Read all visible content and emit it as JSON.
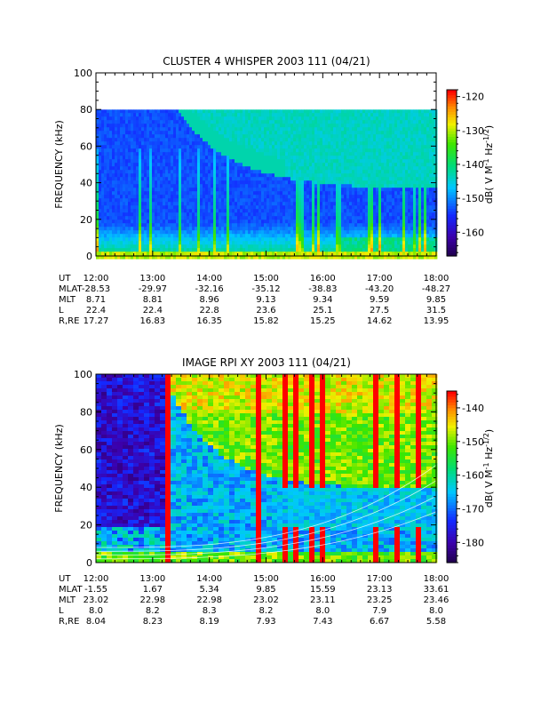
{
  "chart_data": [
    {
      "type": "heatmap",
      "title": "CLUSTER 4 WHISPER 2003 111 (04/21)",
      "ylabel": "FREQUENCY (kHz)",
      "ylim": [
        0,
        100
      ],
      "yticks": [
        0,
        20,
        40,
        60,
        80,
        100
      ],
      "data_top_khz": 80,
      "colorbar": {
        "label": "dB( V M⁻¹ Hz⁻¹ᐟ²)",
        "label_main": "dB( V M",
        "label_mid": " Hz",
        "label_end": ")",
        "sup1": "-1",
        "sup2": "-1/2",
        "ticks": [
          -120,
          -130,
          -140,
          -150,
          -160
        ],
        "range": [
          -167,
          -118
        ]
      },
      "x_ticks": [
        "12:00",
        "13:00",
        "14:00",
        "15:00",
        "16:00",
        "17:00",
        "18:00"
      ],
      "ephemeris_labels": [
        "UT",
        "MLAT",
        "MLT",
        "L",
        "R,RE"
      ],
      "ephemeris": {
        "MLAT": [
          "-28.53",
          "-29.97",
          "-32.16",
          "-35.12",
          "-38.83",
          "-43.20",
          "-48.27"
        ],
        "MLT": [
          "8.71",
          "8.81",
          "8.96",
          "9.13",
          "9.34",
          "9.59",
          "9.85"
        ],
        "L": [
          "22.4",
          "22.4",
          "22.8",
          "23.6",
          "25.1",
          "27.5",
          "31.5"
        ],
        "R,RE": [
          "17.27",
          "16.83",
          "16.35",
          "15.82",
          "15.25",
          "14.62",
          "13.95"
        ]
      }
    },
    {
      "type": "heatmap",
      "title": "IMAGE RPI XY 2003 111 (04/21)",
      "ylabel": "FREQUENCY (kHz)",
      "ylim": [
        0,
        100
      ],
      "yticks": [
        0,
        20,
        40,
        60,
        80,
        100
      ],
      "colorbar": {
        "label_main": "dB( V M",
        "label_mid": " Hz",
        "label_end": ")",
        "sup1": "-1",
        "sup2": "-1/2",
        "ticks": [
          -140,
          -150,
          -160,
          -170,
          -180
        ],
        "range": [
          -186,
          -135
        ]
      },
      "x_ticks": [
        "12:00",
        "13:00",
        "14:00",
        "15:00",
        "16:00",
        "17:00",
        "18:00"
      ],
      "ephemeris_labels": [
        "UT",
        "MLAT",
        "MLT",
        "L",
        "R,RE"
      ],
      "ephemeris": {
        "MLAT": [
          "-1.55",
          "1.67",
          "5.34",
          "9.85",
          "15.59",
          "23.13",
          "33.61"
        ],
        "MLT": [
          "23.02",
          "22.98",
          "22.98",
          "23.02",
          "23.11",
          "23.25",
          "23.46"
        ],
        "L": [
          "8.0",
          "8.2",
          "8.3",
          "8.2",
          "8.0",
          "7.9",
          "8.0"
        ],
        "R,RE": [
          "8.04",
          "8.23",
          "8.19",
          "7.93",
          "7.43",
          "6.67",
          "5.58"
        ]
      }
    }
  ]
}
